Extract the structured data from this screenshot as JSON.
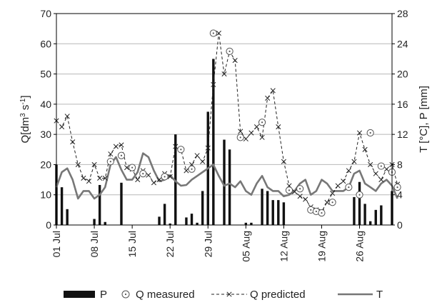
{
  "chart_data": {
    "type": "line",
    "x_tick_labels": [
      "01 Jul",
      "08 Jul",
      "15 Jul",
      "22 Jul",
      "29 Jul",
      "05 Aug",
      "12 Aug",
      "19 Aug",
      "26 Aug"
    ],
    "x_tick_days": [
      0,
      7,
      14,
      21,
      28,
      35,
      42,
      49,
      56
    ],
    "x_range": [
      0,
      62
    ],
    "y_left": {
      "label_parts": [
        "Q[dm",
        "3",
        " s",
        "-1",
        "]"
      ],
      "range": [
        0,
        70
      ],
      "ticks": [
        "0",
        "10",
        "20",
        "30",
        "40",
        "50",
        "60",
        "70"
      ]
    },
    "y_right": {
      "label": "T [°C], P [mm]",
      "range": [
        0,
        28
      ],
      "ticks": [
        "0",
        "4",
        "8",
        "12",
        "16",
        "20",
        "24",
        "28"
      ]
    },
    "grid": "horizontal",
    "legend_position": "bottom",
    "series": [
      {
        "name": "P",
        "style": "bar",
        "axis": "right",
        "color": "#111111",
        "x": [
          0,
          1,
          2,
          7,
          8,
          9,
          12,
          19,
          20,
          21,
          22,
          24,
          25,
          26,
          27,
          28,
          29,
          31,
          32,
          35,
          36,
          38,
          39,
          40,
          41,
          42,
          55,
          56,
          57,
          58,
          59,
          60,
          62
        ],
        "values": [
          8,
          5,
          2.1,
          0.8,
          5.3,
          0.4,
          5.6,
          1.1,
          2.8,
          0.2,
          12,
          1,
          1.5,
          0.3,
          4.5,
          15,
          22,
          11.3,
          10,
          0.3,
          0.3,
          4.8,
          4.5,
          3.3,
          3.3,
          3,
          3.7,
          5.7,
          2.8,
          0.5,
          2,
          2.6,
          4.5
        ]
      },
      {
        "name": "Q measured",
        "style": "circle",
        "axis": "left",
        "x": [
          10,
          12,
          14,
          16,
          20,
          23,
          25,
          29,
          32,
          34,
          38,
          43,
          45,
          47,
          48,
          49,
          51,
          54,
          56,
          58,
          60,
          62,
          63
        ],
        "values": [
          21,
          23,
          19,
          17,
          16,
          25,
          18.5,
          63.5,
          57.5,
          29,
          34,
          11.5,
          12,
          5,
          4.5,
          4,
          7.5,
          12.5,
          10,
          30.5,
          19.5,
          17.5,
          12.5
        ]
      },
      {
        "name": "Q predicted",
        "style": "dashed-cross",
        "axis": "left",
        "color": "#222222",
        "x": [
          0,
          1,
          2,
          3,
          4,
          5,
          6,
          7,
          8,
          9,
          10,
          11,
          12,
          13,
          14,
          15,
          16,
          17,
          18,
          19,
          20,
          21,
          22,
          23,
          24,
          25,
          26,
          27,
          28,
          29,
          30,
          31,
          32,
          33,
          34,
          35,
          36,
          37,
          38,
          39,
          40,
          41,
          42,
          43,
          44,
          45,
          46,
          47,
          48,
          49,
          50,
          51,
          52,
          53,
          54,
          55,
          56,
          57,
          58,
          59,
          60,
          61,
          62,
          63
        ],
        "values": [
          34.5,
          32.5,
          36,
          27.5,
          20,
          15.5,
          14.5,
          20,
          15.5,
          15.5,
          23.5,
          26,
          26.5,
          19,
          18.5,
          15,
          18,
          16.5,
          14,
          15,
          17,
          16,
          26,
          25,
          18,
          20,
          23,
          21,
          25.5,
          46.5,
          63.5,
          50,
          57.5,
          54.5,
          31,
          28.5,
          30.5,
          32.5,
          29,
          42,
          44.5,
          32.5,
          21,
          13,
          11,
          9.5,
          8.5,
          6,
          5,
          4.5,
          7.5,
          10.5,
          13,
          14.5,
          18,
          21,
          30.5,
          25,
          20,
          17,
          15,
          18.5,
          20,
          13.5
        ]
      },
      {
        "name": "T",
        "style": "line",
        "axis": "right",
        "color": "#777777",
        "x": [
          0,
          1,
          2,
          3,
          4,
          5,
          6,
          7,
          8,
          9,
          10,
          11,
          12,
          13,
          14,
          15,
          16,
          17,
          18,
          19,
          20,
          21,
          22,
          23,
          24,
          25,
          26,
          27,
          28,
          29,
          30,
          31,
          32,
          33,
          34,
          35,
          36,
          37,
          38,
          39,
          40,
          41,
          42,
          43,
          44,
          45,
          46,
          47,
          48,
          49,
          50,
          51,
          52,
          53,
          54,
          55,
          56,
          57,
          58,
          59,
          60,
          61,
          62,
          63
        ],
        "values": [
          5,
          7,
          7.5,
          6,
          3.5,
          4.5,
          4.5,
          3.5,
          4,
          5,
          8,
          9,
          7.3,
          6,
          6,
          7,
          9.5,
          9,
          7.2,
          5.8,
          6,
          6.6,
          5.8,
          5.2,
          5.3,
          6,
          6.5,
          7,
          7.5,
          8,
          6.5,
          5.2,
          5.5,
          5,
          5.8,
          4.5,
          4,
          5.5,
          6.5,
          5,
          4.5,
          4.5,
          3.8,
          4,
          4.5,
          5.5,
          6,
          4,
          4.5,
          6,
          5.5,
          4.5,
          4.5,
          4.5,
          5,
          6.8,
          7.2,
          5.5,
          5,
          4.5,
          5.5,
          6,
          5.2,
          3.5
        ]
      }
    ]
  }
}
